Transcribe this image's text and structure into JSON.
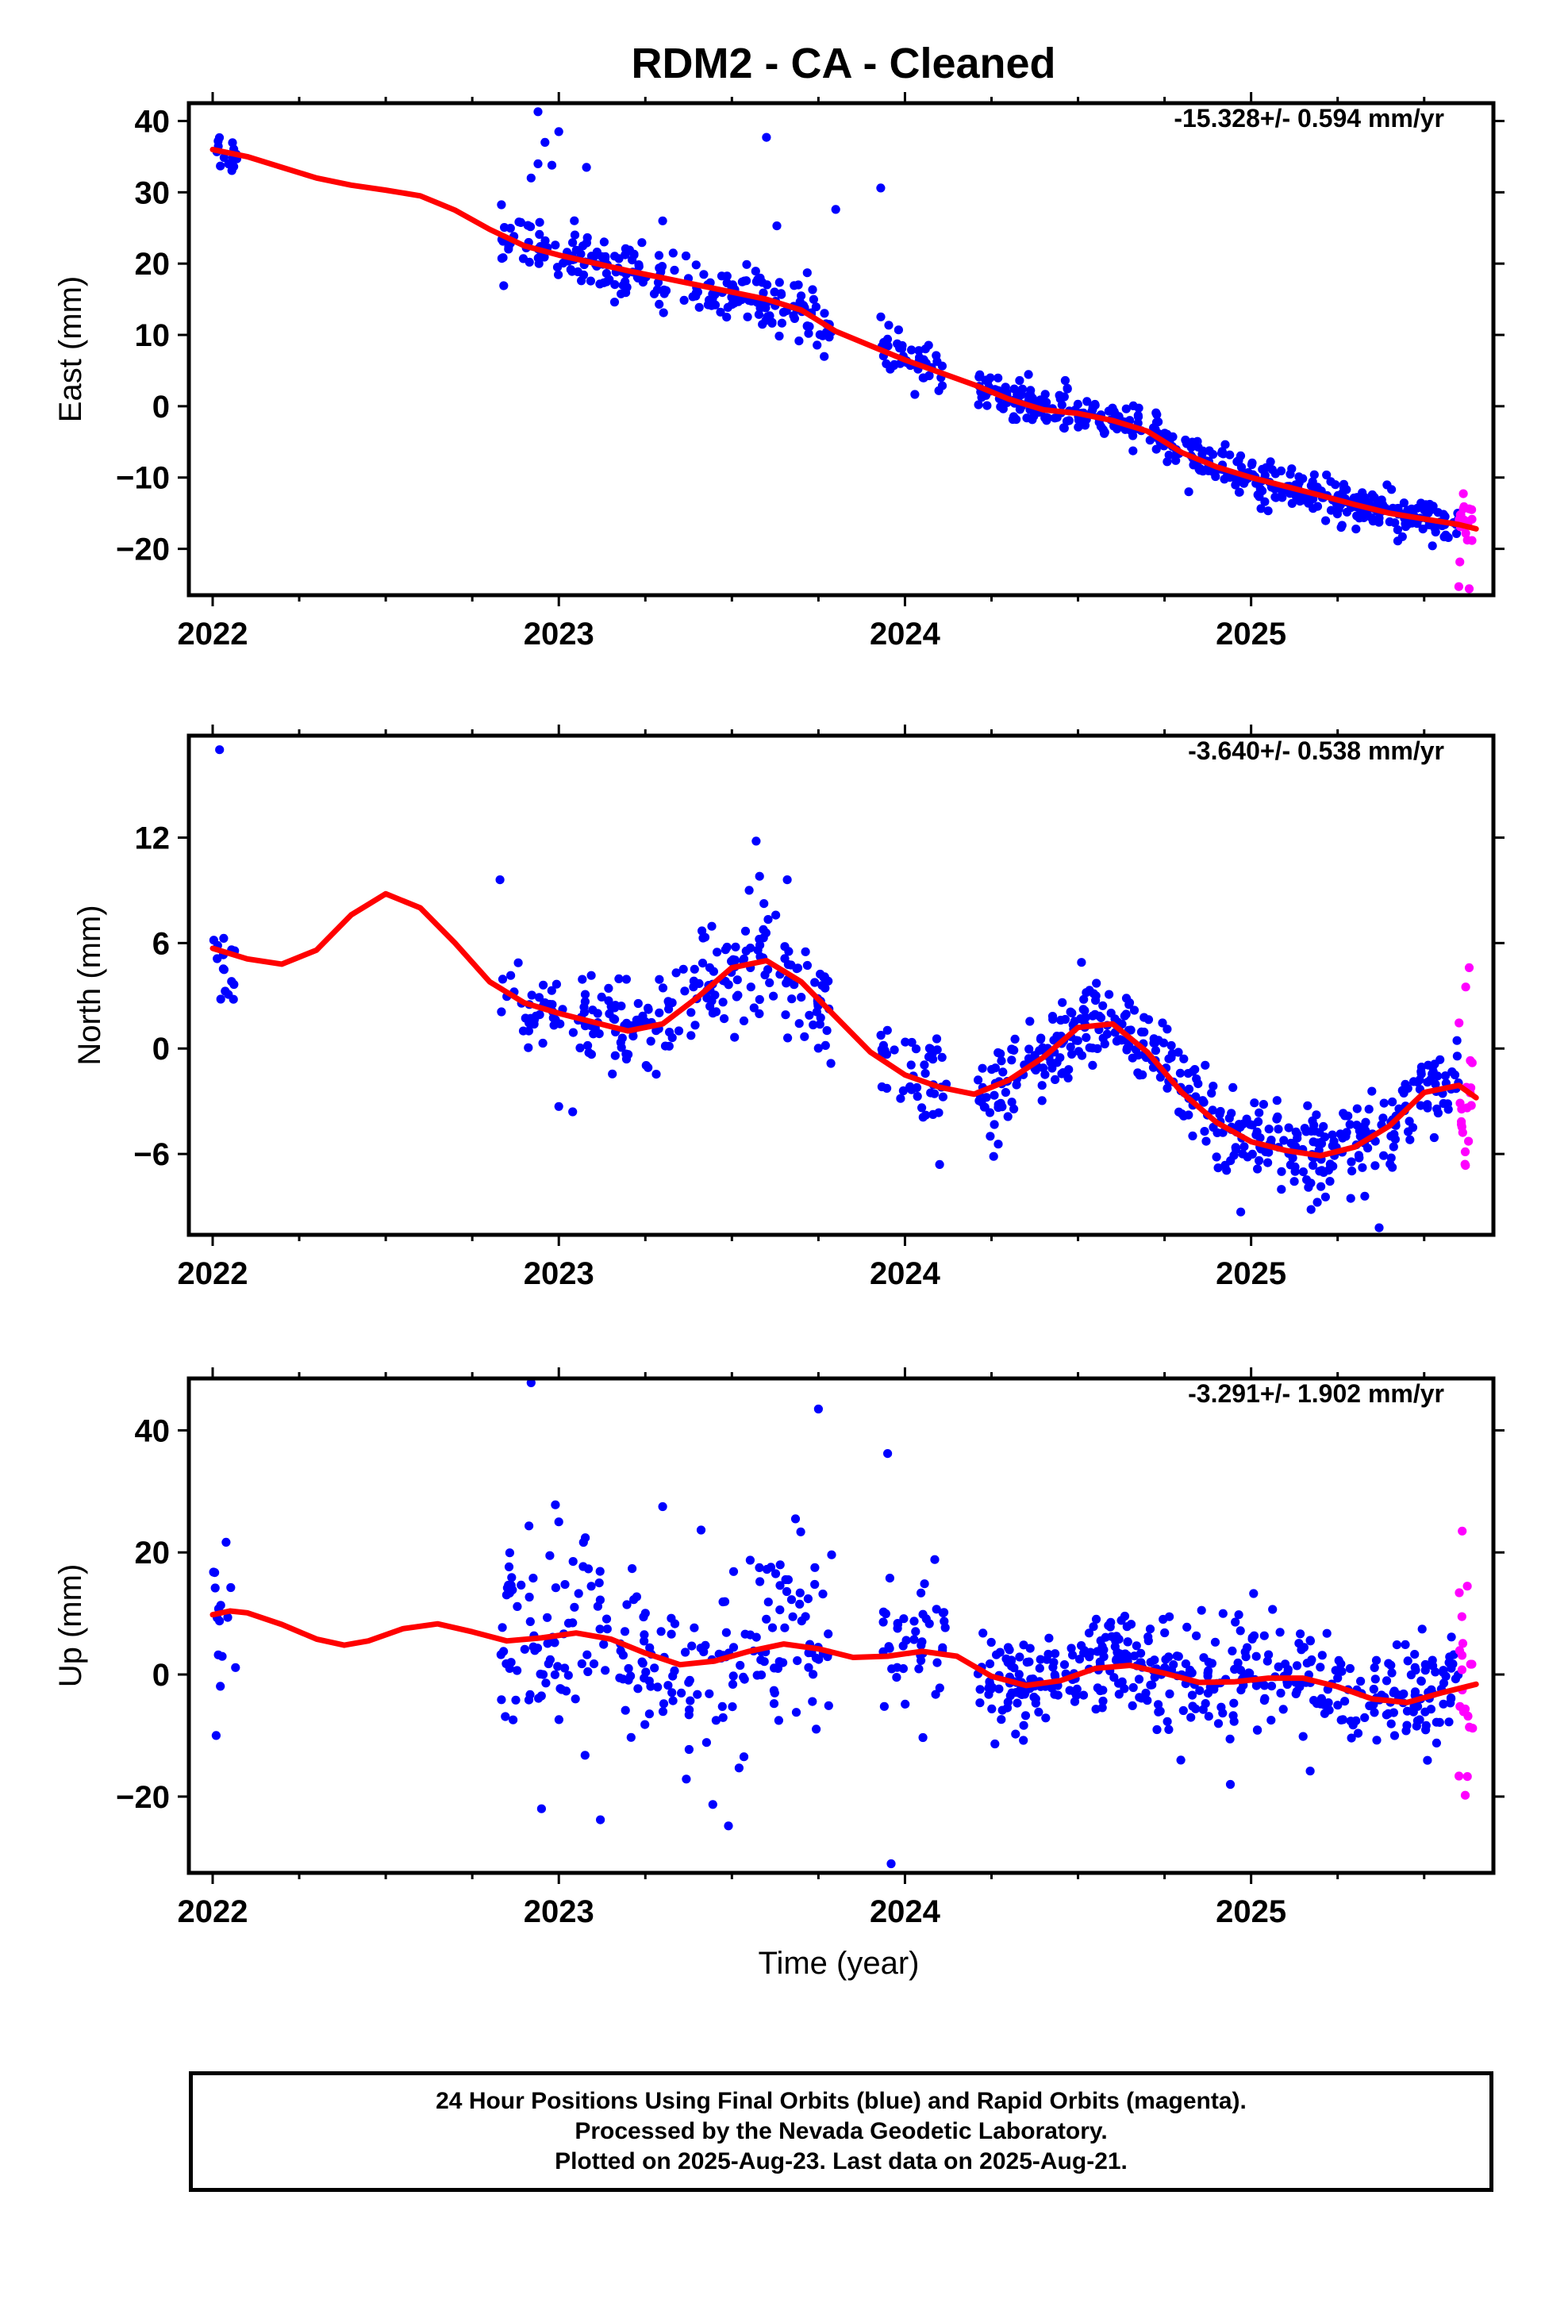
{
  "title": "RDM2  - CA - Cleaned",
  "footer": {
    "line1": "24 Hour Positions Using Final Orbits (blue) and Rapid Orbits (magenta).",
    "line2": "Processed by the Nevada Geodetic Laboratory.",
    "line3": "Plotted on 2025-Aug-23. Last data on 2025-Aug-21."
  },
  "colors": {
    "final": "#0000ff",
    "rapid": "#ff00ff",
    "model": "#ff0000",
    "frame": "#000000"
  },
  "chart_data": [
    {
      "type": "scatter",
      "ylabel": "East (mm)",
      "xlabel": "",
      "rate": "-15.328+/- 0.594 mm/yr",
      "xlim": [
        1992.0,
        1995.7
      ],
      "ylim": [
        -26.5,
        42.5
      ],
      "xticks": [
        {
          "v": 1992,
          "label": "2022"
        },
        {
          "v": 1993,
          "label": "2023"
        },
        {
          "v": 1994,
          "label": "2024"
        },
        {
          "v": 1995,
          "label": "2025"
        }
      ],
      "yticks": [
        {
          "v": 40,
          "label": "40"
        },
        {
          "v": 30,
          "label": "30"
        },
        {
          "v": 20,
          "label": "20"
        },
        {
          "v": 10,
          "label": "10"
        },
        {
          "v": 0,
          "label": "0"
        },
        {
          "v": -10,
          "label": "−10"
        },
        {
          "v": -20,
          "label": "−20"
        }
      ],
      "series": [
        {
          "kind": "final",
          "segments": [
            {
              "x0": 1992.0,
              "x1": 1992.07,
              "n": 14,
              "sd": 1.5
            },
            {
              "x0": 1992.83,
              "x1": 1993.79,
              "n": 230,
              "sd": 2.0
            },
            {
              "x0": 1993.93,
              "x1": 1994.12,
              "n": 45,
              "sd": 1.7
            },
            {
              "x0": 1994.21,
              "x1": 1995.6,
              "n": 430,
              "sd": 1.4
            }
          ],
          "outliers": [
            [
              1992.94,
              41.3
            ],
            [
              1992.96,
              37.0
            ],
            [
              1993.0,
              38.5
            ],
            [
              1992.98,
              33.8
            ],
            [
              1993.6,
              37.7
            ],
            [
              1993.93,
              30.6
            ],
            [
              1992.94,
              34.0
            ],
            [
              1993.08,
              33.5
            ],
            [
              1993.8,
              27.6
            ],
            [
              1993.63,
              25.3
            ],
            [
              1994.82,
              -12.0
            ],
            [
              1995.26,
              -17.0
            ],
            [
              1992.92,
              32.0
            ],
            [
              1993.3,
              26.0
            ]
          ]
        },
        {
          "kind": "rapid",
          "segments": [
            {
              "x0": 1995.6,
              "x1": 1995.64,
              "n": 18,
              "sd": 3.0
            }
          ],
          "outliers": [
            [
              1995.6,
              -25.3
            ],
            [
              1995.63,
              -25.6
            ]
          ]
        }
      ],
      "model": [
        [
          1992.0,
          36.0
        ],
        [
          1992.1,
          35.0
        ],
        [
          1992.2,
          33.5
        ],
        [
          1992.3,
          32.0
        ],
        [
          1992.4,
          31.0
        ],
        [
          1992.5,
          30.3
        ],
        [
          1992.6,
          29.5
        ],
        [
          1992.7,
          27.5
        ],
        [
          1992.8,
          24.8
        ],
        [
          1992.9,
          22.5
        ],
        [
          1993.0,
          21.2
        ],
        [
          1993.2,
          19.0
        ],
        [
          1993.4,
          17.0
        ],
        [
          1993.6,
          15.0
        ],
        [
          1993.7,
          13.5
        ],
        [
          1993.8,
          10.5
        ],
        [
          1993.9,
          8.5
        ],
        [
          1994.0,
          6.5
        ],
        [
          1994.2,
          3.0
        ],
        [
          1994.3,
          1.0
        ],
        [
          1994.4,
          -0.5
        ],
        [
          1994.5,
          -1.0
        ],
        [
          1994.6,
          -2.0
        ],
        [
          1994.7,
          -3.5
        ],
        [
          1994.8,
          -6.5
        ],
        [
          1994.9,
          -8.5
        ],
        [
          1995.0,
          -10.0
        ],
        [
          1995.2,
          -12.5
        ],
        [
          1995.3,
          -13.8
        ],
        [
          1995.4,
          -15.0
        ],
        [
          1995.5,
          -15.8
        ],
        [
          1995.6,
          -16.6
        ],
        [
          1995.65,
          -17.2
        ]
      ]
    },
    {
      "type": "scatter",
      "ylabel": "North (mm)",
      "xlabel": "",
      "rate": "-3.640+/- 0.538 mm/yr",
      "xlim": [
        1992.0,
        1995.7
      ],
      "ylim": [
        -10.6,
        17.8
      ],
      "xticks": [
        {
          "v": 1992,
          "label": "2022"
        },
        {
          "v": 1993,
          "label": "2023"
        },
        {
          "v": 1994,
          "label": "2024"
        },
        {
          "v": 1995,
          "label": "2025"
        }
      ],
      "yticks": [
        {
          "v": 12,
          "label": "12"
        },
        {
          "v": 6,
          "label": "6"
        },
        {
          "v": 0,
          "label": "0"
        },
        {
          "v": -6,
          "label": "−6"
        }
      ],
      "series": [
        {
          "kind": "final",
          "segments": [
            {
              "x0": 1992.0,
              "x1": 1992.07,
              "n": 14,
              "sd": 1.4
            },
            {
              "x0": 1992.83,
              "x1": 1993.79,
              "n": 230,
              "sd": 1.4
            },
            {
              "x0": 1993.93,
              "x1": 1994.12,
              "n": 45,
              "sd": 1.5
            },
            {
              "x0": 1994.21,
              "x1": 1995.6,
              "n": 430,
              "sd": 1.2
            }
          ],
          "outliers": [
            [
              1992.02,
              17.0
            ],
            [
              1992.83,
              9.6
            ],
            [
              1993.57,
              11.8
            ],
            [
              1993.58,
              9.8
            ],
            [
              1993.66,
              9.6
            ],
            [
              1993.55,
              9.0
            ],
            [
              1992.06,
              2.8
            ],
            [
              1994.97,
              -9.3
            ],
            [
              1995.37,
              -10.2
            ],
            [
              1994.1,
              -6.6
            ],
            [
              1993.04,
              -3.6
            ],
            [
              1993.0,
              -3.3
            ],
            [
              1994.51,
              4.9
            ]
          ]
        },
        {
          "kind": "rapid",
          "segments": [
            {
              "x0": 1995.6,
              "x1": 1995.64,
              "n": 18,
              "sd": 2.0
            }
          ],
          "outliers": [
            [
              1995.63,
              4.6
            ],
            [
              1995.62,
              3.5
            ]
          ]
        }
      ],
      "model": [
        [
          1992.0,
          5.7
        ],
        [
          1992.1,
          5.1
        ],
        [
          1992.2,
          4.8
        ],
        [
          1992.3,
          5.6
        ],
        [
          1992.4,
          7.6
        ],
        [
          1992.5,
          8.8
        ],
        [
          1992.6,
          8.0
        ],
        [
          1992.7,
          6.0
        ],
        [
          1992.8,
          3.8
        ],
        [
          1992.9,
          2.6
        ],
        [
          1993.0,
          2.0
        ],
        [
          1993.1,
          1.5
        ],
        [
          1993.2,
          1.0
        ],
        [
          1993.3,
          1.4
        ],
        [
          1993.4,
          2.9
        ],
        [
          1993.5,
          4.6
        ],
        [
          1993.6,
          5.0
        ],
        [
          1993.7,
          3.8
        ],
        [
          1993.8,
          1.8
        ],
        [
          1993.9,
          -0.2
        ],
        [
          1994.0,
          -1.5
        ],
        [
          1994.1,
          -2.2
        ],
        [
          1994.2,
          -2.6
        ],
        [
          1994.3,
          -1.8
        ],
        [
          1994.4,
          -0.5
        ],
        [
          1994.5,
          1.2
        ],
        [
          1994.6,
          1.4
        ],
        [
          1994.7,
          -0.2
        ],
        [
          1994.8,
          -2.5
        ],
        [
          1994.9,
          -4.2
        ],
        [
          1995.0,
          -5.3
        ],
        [
          1995.1,
          -5.8
        ],
        [
          1995.2,
          -6.1
        ],
        [
          1995.3,
          -5.6
        ],
        [
          1995.4,
          -4.4
        ],
        [
          1995.5,
          -2.5
        ],
        [
          1995.6,
          -2.1
        ],
        [
          1995.65,
          -2.8
        ]
      ]
    },
    {
      "type": "scatter",
      "ylabel": "Up (mm)",
      "xlabel": "Time (year)",
      "rate": "-3.291+/- 1.902 mm/yr",
      "xlim": [
        1992.0,
        1995.7
      ],
      "ylim": [
        -32.5,
        48.5
      ],
      "xticks": [
        {
          "v": 1992,
          "label": "2022"
        },
        {
          "v": 1993,
          "label": "2023"
        },
        {
          "v": 1994,
          "label": "2024"
        },
        {
          "v": 1995,
          "label": "2025"
        }
      ],
      "yticks": [
        {
          "v": 40,
          "label": "40"
        },
        {
          "v": 20,
          "label": "20"
        },
        {
          "v": 0,
          "label": "0"
        },
        {
          "v": -20,
          "label": "−20"
        }
      ],
      "series": [
        {
          "kind": "final",
          "segments": [
            {
              "x0": 1992.0,
              "x1": 1992.07,
              "n": 14,
              "sd": 6.0
            },
            {
              "x0": 1992.83,
              "x1": 1993.79,
              "n": 230,
              "sd": 8.0
            },
            {
              "x0": 1993.93,
              "x1": 1994.12,
              "n": 45,
              "sd": 7.0
            },
            {
              "x0": 1994.21,
              "x1": 1995.6,
              "n": 430,
              "sd": 4.5
            }
          ],
          "outliers": [
            [
              1992.92,
              47.8
            ],
            [
              1993.75,
              43.5
            ],
            [
              1993.95,
              36.2
            ],
            [
              1993.96,
              -31.0
            ],
            [
              1992.99,
              27.8
            ],
            [
              1993.0,
              25.0
            ],
            [
              1993.49,
              -24.8
            ],
            [
              1992.95,
              -22.0
            ],
            [
              1993.12,
              -23.8
            ],
            [
              1993.3,
              27.5
            ],
            [
              1992.01,
              -10.0
            ],
            [
              1994.94,
              -18.0
            ]
          ]
        },
        {
          "kind": "rapid",
          "segments": [
            {
              "x0": 1995.6,
              "x1": 1995.64,
              "n": 18,
              "sd": 9.0
            }
          ],
          "outliers": [
            [
              1995.61,
              23.5
            ],
            [
              1995.64,
              -8.8
            ]
          ]
        }
      ],
      "model": [
        [
          1992.0,
          9.8
        ],
        [
          1992.05,
          10.4
        ],
        [
          1992.1,
          10.1
        ],
        [
          1992.2,
          8.2
        ],
        [
          1992.3,
          5.8
        ],
        [
          1992.38,
          4.8
        ],
        [
          1992.45,
          5.5
        ],
        [
          1992.55,
          7.5
        ],
        [
          1992.65,
          8.3
        ],
        [
          1992.75,
          7.0
        ],
        [
          1992.85,
          5.5
        ],
        [
          1992.95,
          6.0
        ],
        [
          1993.05,
          6.8
        ],
        [
          1993.15,
          5.8
        ],
        [
          1993.25,
          3.5
        ],
        [
          1993.35,
          1.6
        ],
        [
          1993.45,
          2.2
        ],
        [
          1993.55,
          3.8
        ],
        [
          1993.65,
          5.0
        ],
        [
          1993.75,
          4.2
        ],
        [
          1993.85,
          2.8
        ],
        [
          1993.95,
          3.0
        ],
        [
          1994.05,
          3.8
        ],
        [
          1994.15,
          3.0
        ],
        [
          1994.25,
          -0.3
        ],
        [
          1994.35,
          -1.8
        ],
        [
          1994.45,
          -1.0
        ],
        [
          1994.55,
          1.0
        ],
        [
          1994.65,
          1.5
        ],
        [
          1994.75,
          0.2
        ],
        [
          1994.85,
          -1.3
        ],
        [
          1994.95,
          -1.2
        ],
        [
          1995.05,
          -0.6
        ],
        [
          1995.15,
          -0.6
        ],
        [
          1995.25,
          -2.0
        ],
        [
          1995.35,
          -4.0
        ],
        [
          1995.45,
          -4.6
        ],
        [
          1995.55,
          -3.0
        ],
        [
          1995.65,
          -1.6
        ]
      ]
    }
  ]
}
